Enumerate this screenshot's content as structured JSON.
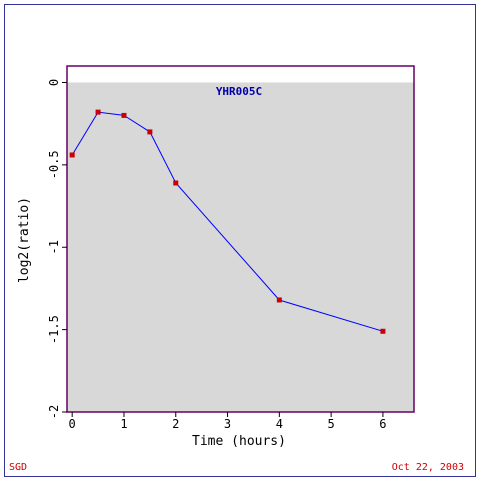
{
  "chart_data": {
    "type": "line",
    "title": "YHR005C",
    "xlabel": "Time (hours)",
    "ylabel": "log2(ratio)",
    "x_ticks": [
      0,
      1,
      2,
      3,
      4,
      5,
      6
    ],
    "y_ticks": [
      0,
      -0.5,
      -1,
      -1.5,
      -2
    ],
    "y_tick_labels": [
      "0",
      "-0.5",
      "-1",
      "-1.5",
      "-2"
    ],
    "xlim": [
      -0.1,
      6.6
    ],
    "ylim": [
      -2,
      0.1
    ],
    "grid": false,
    "series": [
      {
        "x": [
          0,
          0.5,
          1,
          1.5,
          2,
          4,
          6
        ],
        "y": [
          -0.44,
          -0.18,
          -0.2,
          -0.3,
          -0.61,
          -1.32,
          -1.51
        ],
        "line_color": "#0000ff",
        "marker_color": "#cc0000"
      }
    ],
    "plot_background": "#d8d8d8",
    "frame_color": "#660066"
  },
  "footer": {
    "source": "SGD",
    "date": "Oct 22, 2003",
    "color": "#cc0000"
  }
}
